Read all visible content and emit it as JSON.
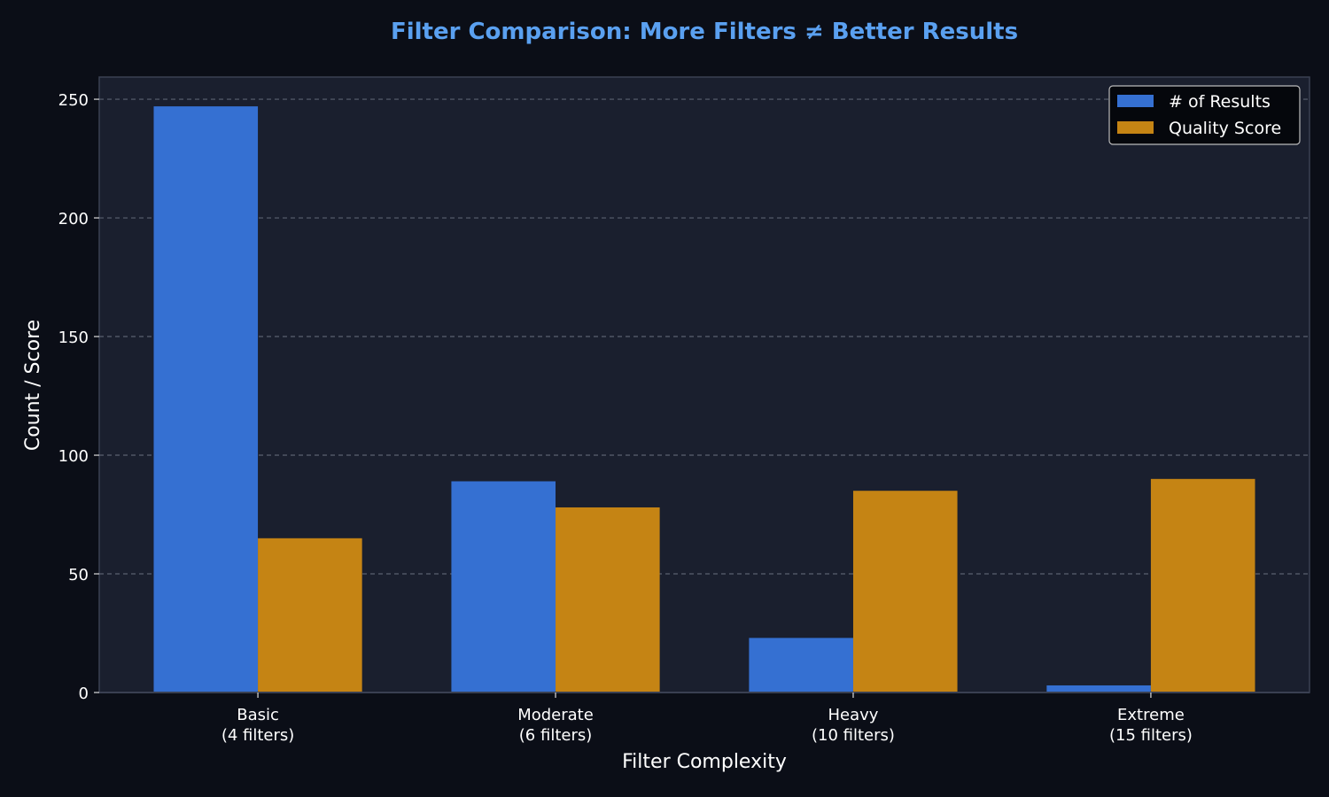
{
  "chart_data": {
    "type": "bar",
    "title": "Filter Comparison: More Filters ≠ Better Results",
    "xlabel": "Filter Complexity",
    "ylabel": "Count / Score",
    "categories": [
      [
        "Basic",
        "(4 filters)"
      ],
      [
        "Moderate",
        "(6 filters)"
      ],
      [
        "Heavy",
        "(10 filters)"
      ],
      [
        "Extreme",
        "(15 filters)"
      ]
    ],
    "series": [
      {
        "name": "# of Results",
        "color": "#3570d2",
        "values": [
          247,
          89,
          23,
          3
        ]
      },
      {
        "name": "Quality Score",
        "color": "#c58414",
        "values": [
          65,
          78,
          85,
          90
        ]
      }
    ],
    "ylim": [
      0,
      259.35
    ],
    "yticks": [
      0,
      50,
      100,
      150,
      200,
      250
    ],
    "grid": true,
    "legend_position": "top-right",
    "colors": {
      "background": "#0b0e17",
      "plot_background": "#1a1f2e",
      "title": "#5aa0f0",
      "text": "#ffffff"
    }
  }
}
